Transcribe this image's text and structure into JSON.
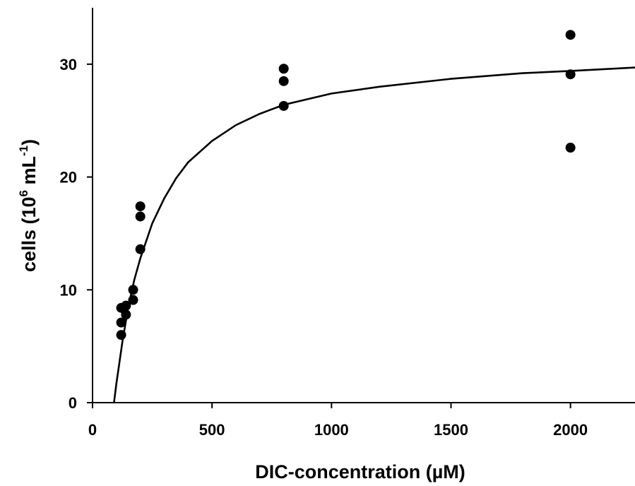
{
  "chart_data": {
    "type": "scatter",
    "xlabel": "DIC-concentration (µM)",
    "ylabel": {
      "prefix": "cells (10",
      "exp1": "6",
      "mid": " mL",
      "exp2": "-1",
      "suffix": ")"
    },
    "xlim": [
      0,
      2270
    ],
    "ylim": [
      0,
      35
    ],
    "xticks": [
      0,
      500,
      1000,
      1500,
      2000
    ],
    "yticks": [
      0,
      10,
      20,
      30
    ],
    "xtick_labels": [
      "0",
      "500",
      "1000",
      "1500",
      "2000"
    ],
    "ytick_labels": [
      "0",
      "10",
      "20",
      "30"
    ],
    "grid": false,
    "series": [
      {
        "kind": "points",
        "points": [
          {
            "x": 120,
            "y": 6.0
          },
          {
            "x": 120,
            "y": 7.1
          },
          {
            "x": 120,
            "y": 8.4
          },
          {
            "x": 140,
            "y": 7.8
          },
          {
            "x": 140,
            "y": 8.6
          },
          {
            "x": 170,
            "y": 9.1
          },
          {
            "x": 170,
            "y": 10.0
          },
          {
            "x": 200,
            "y": 13.6
          },
          {
            "x": 200,
            "y": 16.5
          },
          {
            "x": 200,
            "y": 17.4
          },
          {
            "x": 800,
            "y": 26.3
          },
          {
            "x": 800,
            "y": 28.5
          },
          {
            "x": 800,
            "y": 29.6
          },
          {
            "x": 2000,
            "y": 22.6
          },
          {
            "x": 2000,
            "y": 29.1
          },
          {
            "x": 2000,
            "y": 32.6
          }
        ]
      },
      {
        "kind": "fit_curve",
        "points": [
          {
            "x": 90,
            "y": 0.0
          },
          {
            "x": 100,
            "y": 1.7
          },
          {
            "x": 125,
            "y": 5.4
          },
          {
            "x": 150,
            "y": 8.5
          },
          {
            "x": 175,
            "y": 10.9
          },
          {
            "x": 200,
            "y": 12.8
          },
          {
            "x": 250,
            "y": 15.9
          },
          {
            "x": 300,
            "y": 18.1
          },
          {
            "x": 350,
            "y": 19.9
          },
          {
            "x": 400,
            "y": 21.3
          },
          {
            "x": 500,
            "y": 23.2
          },
          {
            "x": 600,
            "y": 24.6
          },
          {
            "x": 700,
            "y": 25.6
          },
          {
            "x": 800,
            "y": 26.4
          },
          {
            "x": 1000,
            "y": 27.4
          },
          {
            "x": 1200,
            "y": 28.0
          },
          {
            "x": 1500,
            "y": 28.7
          },
          {
            "x": 1800,
            "y": 29.2
          },
          {
            "x": 2000,
            "y": 29.4
          },
          {
            "x": 2270,
            "y": 29.7
          }
        ]
      }
    ]
  }
}
